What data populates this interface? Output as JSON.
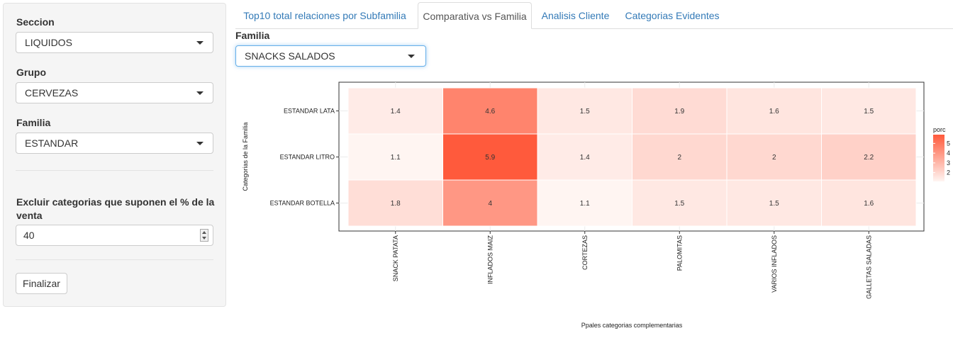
{
  "sidebar": {
    "seccion_label": "Seccion",
    "seccion_value": "LIQUIDOS",
    "grupo_label": "Grupo",
    "grupo_value": "CERVEZAS",
    "familia_label": "Familia",
    "familia_value": "ESTANDAR",
    "exclude_label_line1": "Excluir categorias que suponen el % de la",
    "exclude_label_line2": "venta",
    "exclude_value": "40",
    "finish_label": "Finalizar"
  },
  "tabs": [
    {
      "label": "Top10 total relaciones por Subfamilia",
      "active": false
    },
    {
      "label": "Comparativa vs Familia",
      "active": true
    },
    {
      "label": "Analisis Cliente",
      "active": false
    },
    {
      "label": "Categorias Evidentes",
      "active": false
    }
  ],
  "main": {
    "familia_label": "Familia",
    "familia_value": "SNACKS SALADOS"
  },
  "icons": {
    "dropdown": "chevron-down-icon",
    "spinner": "number-spinner-icon"
  },
  "chart_data": {
    "type": "heatmap",
    "xlabel": "Ppales categorias complementarias",
    "ylabel": "Categorias de la Familia",
    "x": [
      "SNACK PATATA",
      "INFLADOS MAIZ",
      "CORTEZAS",
      "PALOMITAS",
      "VARIOS INFLADOS",
      "GALLETAS SALADAS"
    ],
    "y": [
      "ESTANDAR LATA",
      "ESTANDAR LITRO",
      "ESTANDAR BOTELLA"
    ],
    "values": [
      [
        1.4,
        4.6,
        1.5,
        1.9,
        1.6,
        1.5
      ],
      [
        1.1,
        5.9,
        1.4,
        2,
        2,
        2.2
      ],
      [
        1.8,
        4,
        1.1,
        1.5,
        1.5,
        1.6
      ]
    ],
    "legend": {
      "title": "porc",
      "ticks": [
        "5",
        "4",
        "3",
        "2"
      ],
      "low_color": "#fff5f2",
      "high_color": "#ff5a3c"
    },
    "legend_position": "right",
    "grid": true
  }
}
